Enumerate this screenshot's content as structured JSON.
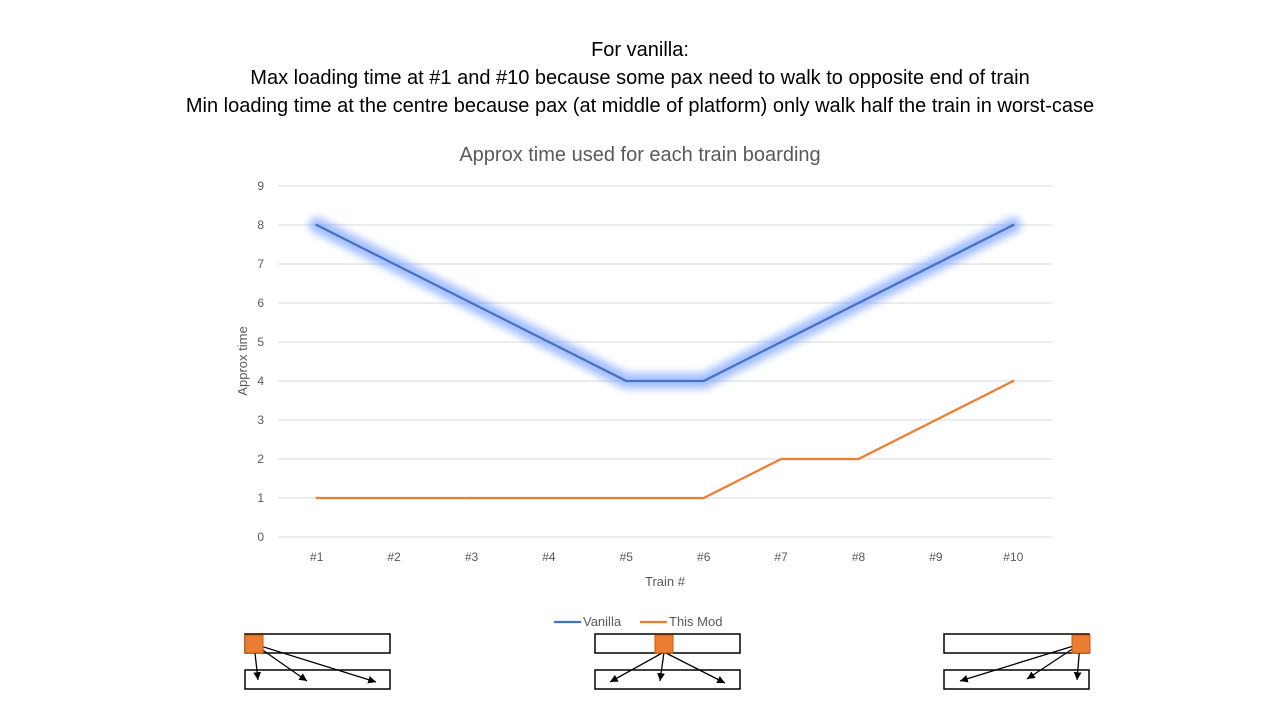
{
  "heading": {
    "line1": "For vanilla:",
    "line2": "Max loading time at #1 and #10 because some pax need to walk to opposite end of train",
    "line3": "Min loading time at the centre because pax (at middle of platform) only walk half the train in worst-case"
  },
  "chart_data": {
    "type": "line",
    "title": "Approx time used for each train boarding",
    "xlabel": "Train #",
    "ylabel": "Approx time",
    "categories": [
      "#1",
      "#2",
      "#3",
      "#4",
      "#5",
      "#6",
      "#7",
      "#8",
      "#9",
      "#10"
    ],
    "ylim": [
      0,
      9
    ],
    "yticks": [
      0,
      1,
      2,
      3,
      4,
      5,
      6,
      7,
      8,
      9
    ],
    "grid": true,
    "legend_position": "bottom",
    "series": [
      {
        "name": "Vanilla",
        "color": "#4472c4",
        "highlighted": true,
        "values": [
          8,
          7,
          6,
          5,
          4,
          4,
          5,
          6,
          7,
          8
        ]
      },
      {
        "name": "This Mod",
        "color": "#ed7d31",
        "highlighted": false,
        "values": [
          1,
          1,
          1,
          1,
          1,
          1,
          2,
          2,
          3,
          4
        ]
      }
    ]
  },
  "diagrams": [
    {
      "name": "door-at-left-end",
      "door_position": "left"
    },
    {
      "name": "door-at-centre",
      "door_position": "centre"
    },
    {
      "name": "door-at-right-end",
      "door_position": "right"
    }
  ]
}
